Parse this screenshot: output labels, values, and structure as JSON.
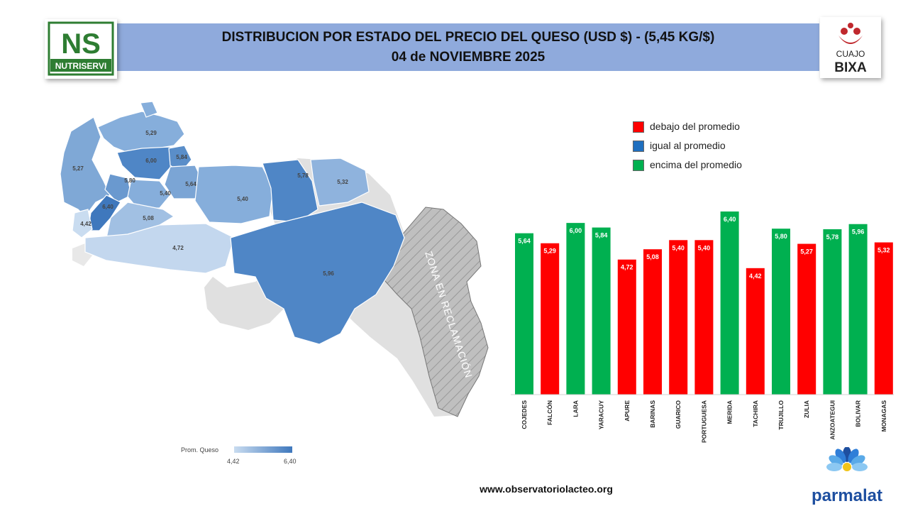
{
  "header": {
    "title_line1": "DISTRIBUCION POR ESTADO DEL PRECIO DEL QUESO (USD $)  - (5,45 KG/$)",
    "title_line2": "04 de NOVIEMBRE 2025"
  },
  "logos": {
    "nutriservi_mark": "NS",
    "nutriservi_name": "NUTRISERVI",
    "cuajo_line1": "CUAJO",
    "cuajo_line2": "BIXA",
    "parmalat_name": "parmalat"
  },
  "colors": {
    "below": "#ff0000",
    "equal": "#1f6fbf",
    "above": "#00b050",
    "map_min": "#c9dcf0",
    "map_max": "#3f78bd",
    "banner": "#8faadc",
    "reclamation": "#bfbfbf"
  },
  "legend": {
    "items": [
      {
        "label": "debajo del promedio",
        "color": "#ff0000"
      },
      {
        "label": "igual al promedio",
        "color": "#1f6fbf"
      },
      {
        "label": "encima del promedio",
        "color": "#00b050"
      }
    ]
  },
  "map": {
    "reclamation_label": "ZONA EN RECLAMACIÓN",
    "scale_label": "Prom. Queso",
    "scale_min": "4,42",
    "scale_max": "6,40",
    "state_labels": [
      "5,29",
      "5,27",
      "6,00",
      "5,84",
      "5,80",
      "5,40",
      "5,64",
      "5,40",
      "5,78",
      "5,32",
      "6,40",
      "4,42",
      "5,08",
      "4,72",
      "5,96"
    ]
  },
  "chart_data": {
    "type": "bar",
    "title": "",
    "xlabel": "",
    "ylabel": "",
    "ylim": [
      0,
      6.4
    ],
    "categories": [
      "COJEDES",
      "FALCÓN",
      "LARA",
      "YARACUY",
      "APURE",
      "BARINAS",
      "GUARICO",
      "PORTUGUESA",
      "MERIDA",
      "TACHIRA",
      "TRUJILLO",
      "ZULIA",
      "ANZOATEGUI",
      "BOLIVAR",
      "MONAGAS"
    ],
    "values": [
      5.64,
      5.29,
      6.0,
      5.84,
      4.72,
      5.08,
      5.4,
      5.4,
      6.4,
      4.42,
      5.8,
      5.27,
      5.78,
      5.96,
      5.32
    ],
    "labels": [
      "5,64",
      "5,29",
      "6,00",
      "5,84",
      "4,72",
      "5,08",
      "5,40",
      "5,40",
      "6,40",
      "4,42",
      "5,80",
      "5,27",
      "5,78",
      "5,96",
      "5,32"
    ],
    "status": [
      "above",
      "below",
      "above",
      "above",
      "below",
      "below",
      "below",
      "below",
      "above",
      "below",
      "above",
      "below",
      "above",
      "above",
      "below"
    ],
    "average": 5.45,
    "grid": false,
    "legend_position": "top-right"
  },
  "footer": {
    "url": "www.observatoriolacteo.org"
  }
}
